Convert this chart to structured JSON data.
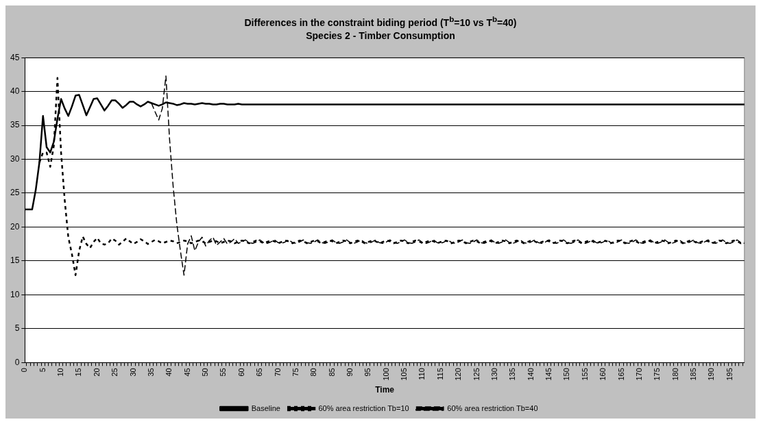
{
  "chart_data": {
    "type": "line",
    "title": "Differences in the constraint biding period (T$^{b}$=10 vs T$^{b}$=40)",
    "subtitle": "Species 2 - Timber Consumption",
    "xlabel": "Time",
    "categories": [
      "0",
      null,
      null,
      null,
      null,
      "5",
      null,
      null,
      null,
      null,
      "10",
      null,
      null,
      null,
      null,
      "15",
      null,
      null,
      null,
      null,
      "20",
      null,
      null,
      null,
      null,
      "25",
      null,
      null,
      null,
      null,
      "30",
      null,
      null,
      null,
      null,
      "35",
      null,
      null,
      null,
      null,
      "40",
      null,
      null,
      null,
      null,
      "45",
      null,
      null,
      null,
      null,
      "50",
      null,
      null,
      null,
      null,
      "55",
      null,
      null,
      null,
      null,
      "60",
      null,
      null,
      null,
      null,
      "65",
      null,
      null,
      null,
      null,
      "70",
      null,
      null,
      null,
      null,
      "75",
      null,
      null,
      null,
      null,
      "80",
      null,
      null,
      null,
      null,
      "85",
      null,
      null,
      null,
      null,
      "90",
      null,
      null,
      null,
      null,
      "95",
      null,
      null,
      null,
      null,
      "100",
      null,
      null,
      null,
      null,
      "105",
      null,
      null,
      null,
      null,
      "110",
      null,
      null,
      null,
      null,
      "115",
      null,
      null,
      null,
      null,
      "120",
      null,
      null,
      null,
      null,
      "125",
      null,
      null,
      null,
      null,
      "130",
      null,
      null,
      null,
      null,
      "135",
      null,
      null,
      null,
      null,
      "140",
      null,
      null,
      null,
      null,
      "145",
      null,
      null,
      null,
      null,
      "150",
      null,
      null,
      null,
      null,
      "155",
      null,
      null,
      null,
      null,
      "160",
      null,
      null,
      null,
      null,
      "165",
      null,
      null,
      null,
      null,
      "170",
      null,
      null,
      null,
      null,
      "175",
      null,
      null,
      null,
      null,
      "180",
      null,
      null,
      null,
      null,
      "185",
      null,
      null,
      null,
      null,
      "190",
      null,
      null,
      null,
      null,
      "195",
      null,
      null,
      null,
      null
    ],
    "series": [
      {
        "name": "Baseline",
        "color": "#000000",
        "line_style": "solid",
        "values": [
          22.6,
          22.6,
          22.6,
          25.5,
          29.5,
          36.4,
          31.8,
          31.0,
          32.6,
          36.0,
          38.9,
          37.5,
          36.4,
          37.8,
          39.4,
          39.5,
          38.0,
          36.5,
          37.7,
          38.9,
          39.0,
          38.1,
          37.2,
          37.9,
          38.7,
          38.7,
          38.2,
          37.6,
          38.0,
          38.5,
          38.5,
          38.1,
          37.8,
          38.1,
          38.5,
          38.3,
          38.1,
          37.9,
          38.1,
          38.4,
          38.3,
          38.2,
          38.0,
          38.1,
          38.3,
          38.2,
          38.2,
          38.1,
          38.2,
          38.3,
          38.2,
          38.2,
          38.1,
          38.1,
          38.2,
          38.2,
          38.1,
          38.1,
          38.1,
          38.2,
          38.1,
          38.1,
          38.1,
          38.1,
          38.1,
          38.1,
          38.1,
          38.1,
          38.1,
          38.1,
          38.1,
          38.1,
          38.1,
          38.1,
          38.1,
          38.1,
          38.1,
          38.1,
          38.1,
          38.1,
          38.1,
          38.1,
          38.1,
          38.1,
          38.1,
          38.1,
          38.1,
          38.1,
          38.1,
          38.1,
          38.1,
          38.1,
          38.1,
          38.1,
          38.1,
          38.1,
          38.1,
          38.1,
          38.1,
          38.1,
          38.1,
          38.1,
          38.1,
          38.1,
          38.1,
          38.1,
          38.1,
          38.1,
          38.1,
          38.1,
          38.1,
          38.1,
          38.1,
          38.1,
          38.1,
          38.1,
          38.1,
          38.1,
          38.1,
          38.1,
          38.1,
          38.1,
          38.1,
          38.1,
          38.1,
          38.1,
          38.1,
          38.1,
          38.1,
          38.1,
          38.1,
          38.1,
          38.1,
          38.1,
          38.1,
          38.1,
          38.1,
          38.1,
          38.1,
          38.1,
          38.1,
          38.1,
          38.1,
          38.1,
          38.1,
          38.1,
          38.1,
          38.1,
          38.1,
          38.1,
          38.1,
          38.1,
          38.1,
          38.1,
          38.1,
          38.1,
          38.1,
          38.1,
          38.1,
          38.1,
          38.1,
          38.1,
          38.1,
          38.1,
          38.1,
          38.1,
          38.1,
          38.1,
          38.1,
          38.1,
          38.1,
          38.1,
          38.1,
          38.1,
          38.1,
          38.1,
          38.1,
          38.1,
          38.1,
          38.1,
          38.1,
          38.1,
          38.1,
          38.1,
          38.1,
          38.1,
          38.1,
          38.1,
          38.1,
          38.1,
          38.1,
          38.1,
          38.1,
          38.1,
          38.1,
          38.1,
          38.1,
          38.1,
          38.1,
          38.1
        ]
      },
      {
        "name": "60% area restriction Tb=10",
        "color": "#000000",
        "line_style": "dotted",
        "values": [
          null,
          null,
          null,
          null,
          29.5,
          31.0,
          31.0,
          28.9,
          32.0,
          42.0,
          31.0,
          24.0,
          18.5,
          16.0,
          12.9,
          16.5,
          18.6,
          17.5,
          16.9,
          17.8,
          18.4,
          17.6,
          17.4,
          17.6,
          18.3,
          18.0,
          17.4,
          17.8,
          18.3,
          17.9,
          17.5,
          17.8,
          18.2,
          17.9,
          17.5,
          17.8,
          18.1,
          17.9,
          17.6,
          17.8,
          18.0,
          17.9,
          17.6,
          17.8,
          18.0,
          17.9,
          17.6,
          17.8,
          18.0,
          17.9,
          17.6,
          17.8,
          18.0,
          17.9,
          17.6,
          17.8,
          18.0,
          17.9,
          17.6,
          17.8,
          18.0,
          17.9,
          17.6,
          17.8,
          18.0,
          17.9,
          17.6,
          17.8,
          18.0,
          17.9,
          17.6,
          17.8,
          18.0,
          17.9,
          17.6,
          17.8,
          18.0,
          17.9,
          17.6,
          17.8,
          18.0,
          17.9,
          17.6,
          17.8,
          18.0,
          17.9,
          17.6,
          17.8,
          18.0,
          17.9,
          17.6,
          17.8,
          18.0,
          17.9,
          17.6,
          17.8,
          18.0,
          17.9,
          17.6,
          17.8,
          18.0,
          17.9,
          17.6,
          17.8,
          18.0,
          17.9,
          17.6,
          17.8,
          18.0,
          17.9,
          17.6,
          17.8,
          18.0,
          17.9,
          17.6,
          17.8,
          18.0,
          17.9,
          17.6,
          17.8,
          18.0,
          17.9,
          17.6,
          17.8,
          18.0,
          17.9,
          17.6,
          17.8,
          18.0,
          17.9,
          17.6,
          17.8,
          18.0,
          17.9,
          17.6,
          17.8,
          18.0,
          17.9,
          17.6,
          17.8,
          18.0,
          17.9,
          17.6,
          17.8,
          18.0,
          17.9,
          17.6,
          17.8,
          18.0,
          17.9,
          17.6,
          17.8,
          18.0,
          17.9,
          17.6,
          17.8,
          18.0,
          17.9,
          17.6,
          17.8,
          18.0,
          17.9,
          17.6,
          17.8,
          18.0,
          17.9,
          17.6,
          17.8,
          18.0,
          17.9,
          17.6,
          17.8,
          18.0,
          17.9,
          17.6,
          17.8,
          18.0,
          17.9,
          17.6,
          17.8,
          18.0,
          17.9,
          17.6,
          17.8,
          18.0,
          17.9,
          17.6,
          17.8,
          18.0,
          17.9,
          17.6,
          17.8,
          18.0,
          17.9,
          17.6,
          17.8,
          18.0,
          17.9,
          17.6,
          17.8
        ]
      },
      {
        "name": "60% area restriction Tb=40",
        "color": "#000000",
        "line_style": "dashed",
        "values": [
          null,
          null,
          null,
          null,
          null,
          null,
          null,
          null,
          null,
          null,
          null,
          null,
          null,
          null,
          null,
          null,
          null,
          null,
          null,
          null,
          null,
          null,
          null,
          null,
          null,
          null,
          null,
          null,
          null,
          null,
          null,
          null,
          null,
          null,
          null,
          38.3,
          37.0,
          35.8,
          37.5,
          42.3,
          33.0,
          26.0,
          20.5,
          16.5,
          12.9,
          17.5,
          18.7,
          16.5,
          17.8,
          18.5,
          17.2,
          18.0,
          18.5,
          17.3,
          17.8,
          18.3,
          17.5,
          17.8,
          18.3,
          17.6,
          17.8,
          18.1,
          17.7,
          17.6,
          17.8,
          18.1,
          17.7,
          17.6,
          17.8,
          18.1,
          17.7,
          17.6,
          17.8,
          18.1,
          17.7,
          17.6,
          17.8,
          18.1,
          17.7,
          17.6,
          17.8,
          18.1,
          17.7,
          17.6,
          17.8,
          18.1,
          17.7,
          17.6,
          17.8,
          18.1,
          17.7,
          17.6,
          17.8,
          18.1,
          17.7,
          17.6,
          17.8,
          18.1,
          17.7,
          17.6,
          17.8,
          18.1,
          17.7,
          17.6,
          17.8,
          18.1,
          17.7,
          17.6,
          17.8,
          18.1,
          17.7,
          17.6,
          17.8,
          18.1,
          17.7,
          17.6,
          17.8,
          18.1,
          17.7,
          17.6,
          17.8,
          18.1,
          17.7,
          17.6,
          17.8,
          18.1,
          17.7,
          17.6,
          17.8,
          18.1,
          17.7,
          17.6,
          17.8,
          18.1,
          17.7,
          17.6,
          17.8,
          18.1,
          17.7,
          17.6,
          17.8,
          18.1,
          17.7,
          17.6,
          17.8,
          18.1,
          17.7,
          17.6,
          17.8,
          18.1,
          17.7,
          17.6,
          17.8,
          18.1,
          17.7,
          17.6,
          17.8,
          18.1,
          17.7,
          17.6,
          17.8,
          18.1,
          17.7,
          17.6,
          17.8,
          18.1,
          17.7,
          17.6,
          17.8,
          18.1,
          17.7,
          17.6,
          17.8,
          18.1,
          17.7,
          17.6,
          17.8,
          18.1,
          17.7,
          17.6,
          17.8,
          18.1,
          17.7,
          17.6,
          17.8,
          18.1,
          17.7,
          17.6,
          17.8,
          18.1,
          17.7,
          17.6,
          17.8,
          18.1,
          17.7,
          17.6,
          17.8,
          18.1,
          17.7,
          17.6
        ]
      }
    ],
    "ylim": [
      0,
      45
    ],
    "yticks": [
      0,
      5,
      10,
      15,
      20,
      25,
      30,
      35,
      40,
      45
    ],
    "grid": "y",
    "legend": "bottom",
    "marker": "none"
  }
}
